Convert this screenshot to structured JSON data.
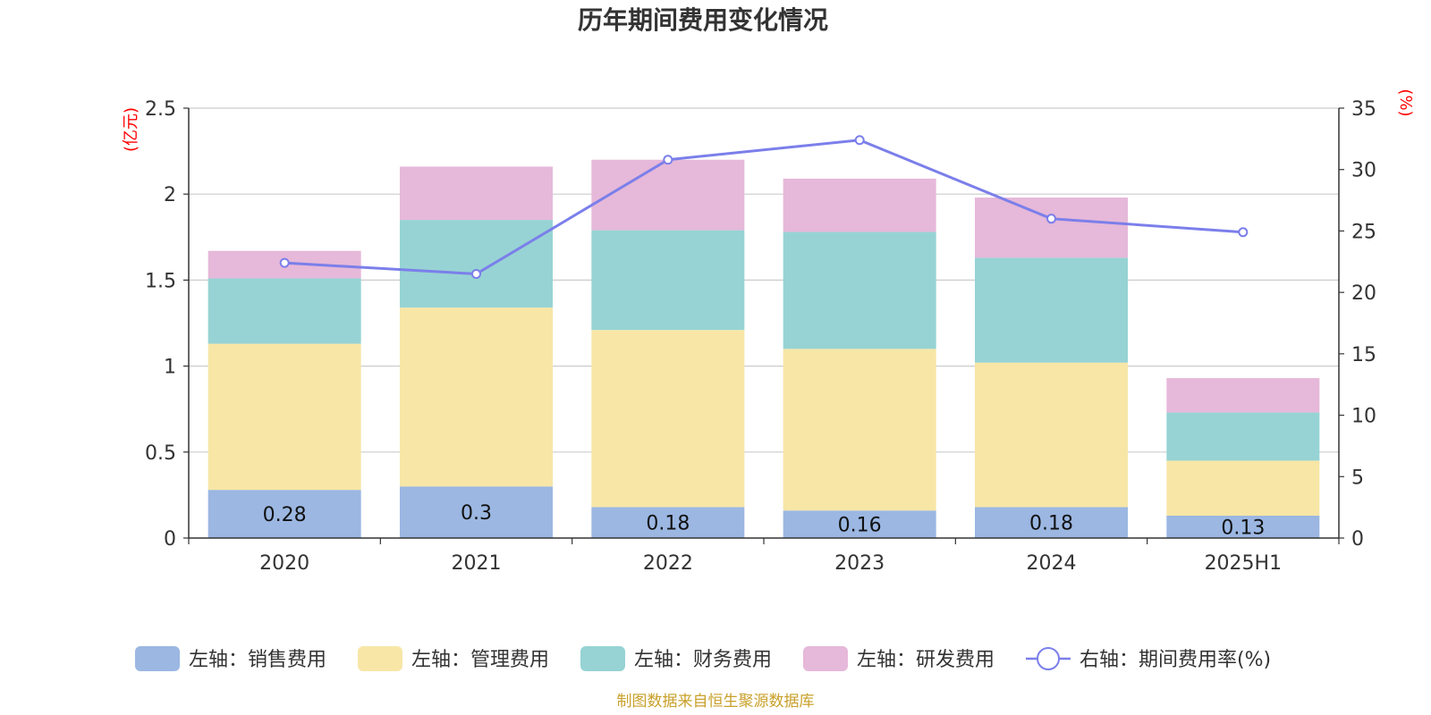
{
  "chart_data": {
    "type": "bar",
    "title": "历年期间费用变化情况",
    "categories": [
      "2020",
      "2021",
      "2022",
      "2023",
      "2024",
      "2025H1"
    ],
    "left_axis": {
      "unit": "(亿元)",
      "ylim": [
        0,
        2.5
      ],
      "ticks": [
        "0",
        "0.5",
        "1",
        "1.5",
        "2",
        "2.5"
      ]
    },
    "right_axis": {
      "unit": "(%)",
      "ylim": [
        0,
        35
      ],
      "ticks": [
        "0",
        "5",
        "10",
        "15",
        "20",
        "25",
        "30",
        "35"
      ]
    },
    "series": [
      {
        "name": "左轴：销售费用",
        "axis": "left",
        "type": "bar",
        "color": "#9bb7e2",
        "values": [
          0.28,
          0.3,
          0.18,
          0.16,
          0.18,
          0.13
        ],
        "labels": [
          "0.28",
          "0.3",
          "0.18",
          "0.16",
          "0.18",
          "0.13"
        ]
      },
      {
        "name": "左轴：管理费用",
        "axis": "left",
        "type": "bar",
        "color": "#f7e6a6",
        "values": [
          0.85,
          1.04,
          1.03,
          0.94,
          0.84,
          0.32
        ]
      },
      {
        "name": "左轴：财务费用",
        "axis": "left",
        "type": "bar",
        "color": "#97d3d4",
        "values": [
          0.38,
          0.51,
          0.58,
          0.68,
          0.61,
          0.28
        ]
      },
      {
        "name": "左轴：研发费用",
        "axis": "left",
        "type": "bar",
        "color": "#e6b8d9",
        "values": [
          0.16,
          0.31,
          0.41,
          0.31,
          0.35,
          0.2
        ]
      },
      {
        "name": "右轴：期间费用率(%)",
        "axis": "right",
        "type": "line",
        "color": "#7b7fea",
        "values": [
          22.4,
          21.5,
          30.8,
          32.4,
          26.0,
          24.9
        ]
      }
    ],
    "grid": true,
    "legend_position": "bottom"
  },
  "source": "制图数据来自恒生聚源数据库"
}
